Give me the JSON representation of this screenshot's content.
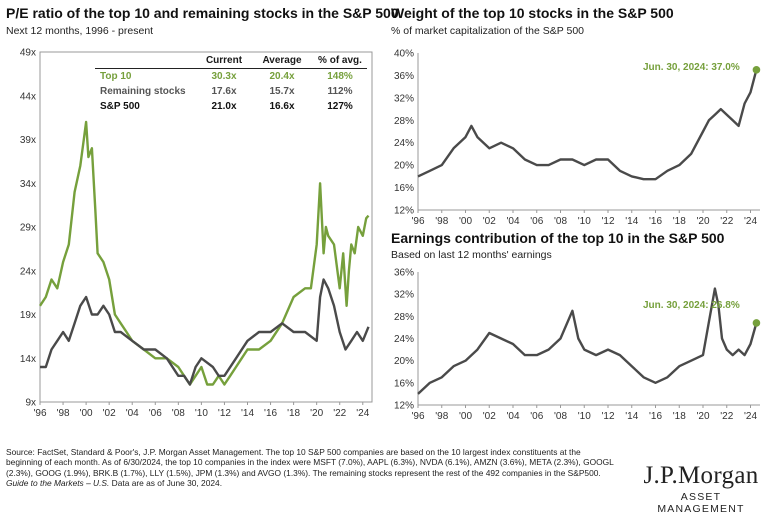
{
  "panel_left": {
    "title": "P/E ratio of the top 10 and remaining stocks in the S&P 500",
    "subtitle": "Next 12 months, 1996 - present",
    "table": {
      "headers": [
        "Current",
        "Average",
        "% of avg."
      ],
      "rows": [
        {
          "label": "Top 10",
          "current": "30.3x",
          "average": "20.4x",
          "pct": "148%"
        },
        {
          "label": "Remaining stocks",
          "current": "17.6x",
          "average": "15.7x",
          "pct": "112%"
        },
        {
          "label": "S&P 500",
          "current": "21.0x",
          "average": "16.6x",
          "pct": "127%"
        }
      ]
    }
  },
  "panel_top_right": {
    "title": "Weight of the top 10 stocks in the S&P 500",
    "subtitle": "% of market capitalization of the S&P 500",
    "annotation": "Jun. 30, 2024: 37.0%"
  },
  "panel_bottom_right": {
    "title": "Earnings contribution of the top 10 in the S&P 500",
    "subtitle": "Based on last 12 months' earnings",
    "annotation": "Jun. 30, 2024: 26.8%"
  },
  "colors": {
    "green": "#76a03c",
    "gray": "#4a4a4a",
    "axis": "#999999"
  },
  "footnote": {
    "source": "Source: FactSet, Standard & Poor's, J.P. Morgan Asset Management. The top 10 S&P 500 companies are based on the 10 largest index constituents at the beginning of each month. As of 6/30/2024, the top 10 companies in the index were MSFT (7.0%), AAPL (6.3%), NVDA (6.1%), AMZN (3.6%), META (2.3%), GOOGL (2.3%), GOOG (1.9%), BRK.B (1.7%), LLY (1.5%), JPM (1.3%) and AVGO (1.3%). The remaining stocks represent the rest of the 492 companies in the S&P500.",
    "guide": "Guide to the Markets – U.S.",
    "asof": " Data are as of June 30, 2024."
  },
  "logo": {
    "name": "J.P.Morgan",
    "sub": "ASSET MANAGEMENT"
  },
  "chart_data": [
    {
      "type": "line",
      "title": "P/E ratio of the top 10 and remaining stocks in the S&P 500",
      "x_tick_labels": [
        "'96",
        "'98",
        "'00",
        "'02",
        "'04",
        "'06",
        "'08",
        "'10",
        "'12",
        "'14",
        "'16",
        "'18",
        "'20",
        "'22",
        "'24"
      ],
      "y_tick_labels": [
        "9x",
        "14x",
        "19x",
        "24x",
        "29x",
        "34x",
        "39x",
        "44x",
        "49x"
      ],
      "xlim": [
        1996,
        2024.8
      ],
      "ylim": [
        9,
        49
      ],
      "series": [
        {
          "name": "Top 10",
          "color": "#76a03c",
          "x": [
            1996.0,
            1996.5,
            1997.0,
            1997.5,
            1998.0,
            1998.5,
            1999.0,
            1999.5,
            1999.8,
            2000.0,
            2000.2,
            2000.5,
            2000.8,
            2001.0,
            2001.5,
            2002.0,
            2002.5,
            2003.0,
            2003.5,
            2004.0,
            2005.0,
            2006.0,
            2007.0,
            2008.0,
            2008.5,
            2009.0,
            2009.5,
            2010.0,
            2010.5,
            2011.0,
            2011.5,
            2012.0,
            2012.5,
            2013.0,
            2013.5,
            2014.0,
            2015.0,
            2016.0,
            2017.0,
            2018.0,
            2019.0,
            2019.5,
            2020.0,
            2020.3,
            2020.6,
            2020.8,
            2021.0,
            2021.5,
            2022.0,
            2022.3,
            2022.6,
            2022.8,
            2023.0,
            2023.3,
            2023.6,
            2024.0,
            2024.3,
            2024.5
          ],
          "values": [
            20,
            21,
            23,
            22,
            25,
            27,
            33,
            36,
            39,
            41,
            37,
            38,
            31,
            26,
            25,
            23,
            19,
            18,
            17,
            16,
            15,
            14,
            14,
            13,
            12,
            11,
            12,
            13,
            11,
            11,
            12,
            11,
            12,
            13,
            14,
            15,
            15,
            16,
            18,
            21,
            22,
            22,
            27,
            34,
            26,
            29,
            28,
            27,
            22,
            26,
            20,
            24,
            27,
            26,
            29,
            28,
            30,
            30.3
          ]
        },
        {
          "name": "Remaining stocks",
          "color": "#4a4a4a",
          "x": [
            1996.0,
            1996.5,
            1997.0,
            1997.5,
            1998.0,
            1998.5,
            1999.0,
            1999.5,
            2000.0,
            2000.5,
            2001.0,
            2001.5,
            2002.0,
            2002.5,
            2003.0,
            2004.0,
            2005.0,
            2006.0,
            2007.0,
            2008.0,
            2008.5,
            2009.0,
            2009.5,
            2010.0,
            2011.0,
            2011.5,
            2012.0,
            2013.0,
            2014.0,
            2015.0,
            2016.0,
            2017.0,
            2018.0,
            2019.0,
            2020.0,
            2020.3,
            2020.6,
            2021.0,
            2021.5,
            2022.0,
            2022.5,
            2023.0,
            2023.5,
            2024.0,
            2024.5
          ],
          "values": [
            13,
            13,
            15,
            16,
            17,
            16,
            18,
            20,
            21,
            19,
            19,
            20,
            19,
            17,
            17,
            16,
            15,
            15,
            14,
            12,
            12,
            11,
            13,
            14,
            13,
            12,
            12,
            14,
            16,
            17,
            17,
            18,
            17,
            17,
            16,
            21,
            23,
            22,
            20,
            17,
            15,
            16,
            17,
            16,
            17.6
          ]
        }
      ]
    },
    {
      "type": "line",
      "title": "Weight of the top 10 stocks in the S&P 500",
      "ylabel": "% of market capitalization of the S&P 500",
      "x_tick_labels": [
        "'96",
        "'98",
        "'00",
        "'02",
        "'04",
        "'06",
        "'08",
        "'10",
        "'12",
        "'14",
        "'16",
        "'18",
        "'20",
        "'22",
        "'24"
      ],
      "y_tick_labels": [
        "12%",
        "16%",
        "20%",
        "24%",
        "28%",
        "32%",
        "36%",
        "40%"
      ],
      "xlim": [
        1996,
        2024.8
      ],
      "ylim": [
        12,
        40
      ],
      "series": [
        {
          "name": "Top 10",
          "color": "#4a4a4a",
          "x": [
            1996.0,
            1997.0,
            1998.0,
            1999.0,
            2000.0,
            2000.5,
            2001.0,
            2002.0,
            2003.0,
            2004.0,
            2005.0,
            2006.0,
            2007.0,
            2008.0,
            2009.0,
            2010.0,
            2011.0,
            2012.0,
            2013.0,
            2014.0,
            2015.0,
            2016.0,
            2017.0,
            2018.0,
            2019.0,
            2020.0,
            2020.5,
            2021.0,
            2021.5,
            2022.0,
            2022.5,
            2023.0,
            2023.5,
            2024.0,
            2024.5
          ],
          "values": [
            18,
            19,
            20,
            23,
            25,
            27,
            25,
            23,
            24,
            23,
            21,
            20,
            20,
            21,
            21,
            20,
            21,
            21,
            19,
            18,
            17.5,
            17.5,
            19,
            20,
            22,
            26,
            28,
            29,
            30,
            29,
            28,
            27,
            31,
            33,
            37.0
          ]
        }
      ]
    },
    {
      "type": "line",
      "title": "Earnings contribution of the top 10 in the S&P 500",
      "ylabel": "Based on last 12 months' earnings",
      "x_tick_labels": [
        "'96",
        "'98",
        "'00",
        "'02",
        "'04",
        "'06",
        "'08",
        "'10",
        "'12",
        "'14",
        "'16",
        "'18",
        "'20",
        "'22",
        "'24"
      ],
      "y_tick_labels": [
        "12%",
        "16%",
        "20%",
        "24%",
        "28%",
        "32%",
        "36%"
      ],
      "xlim": [
        1996,
        2024.8
      ],
      "ylim": [
        12,
        36
      ],
      "series": [
        {
          "name": "Top 10",
          "color": "#4a4a4a",
          "x": [
            1996.0,
            1997.0,
            1998.0,
            1999.0,
            2000.0,
            2001.0,
            2002.0,
            2003.0,
            2004.0,
            2005.0,
            2006.0,
            2007.0,
            2008.0,
            2009.0,
            2009.5,
            2010.0,
            2011.0,
            2012.0,
            2013.0,
            2014.0,
            2015.0,
            2016.0,
            2017.0,
            2018.0,
            2019.0,
            2020.0,
            2020.5,
            2021.0,
            2021.3,
            2021.6,
            2022.0,
            2022.5,
            2023.0,
            2023.5,
            2024.0,
            2024.5
          ],
          "values": [
            14,
            16,
            17,
            19,
            20,
            22,
            25,
            24,
            23,
            21,
            21,
            22,
            24,
            29,
            24,
            22,
            21,
            22,
            21,
            19,
            17,
            16,
            17,
            19,
            20,
            21,
            27,
            33,
            30,
            24,
            22,
            21,
            22,
            21,
            23,
            26.8
          ]
        }
      ]
    }
  ]
}
